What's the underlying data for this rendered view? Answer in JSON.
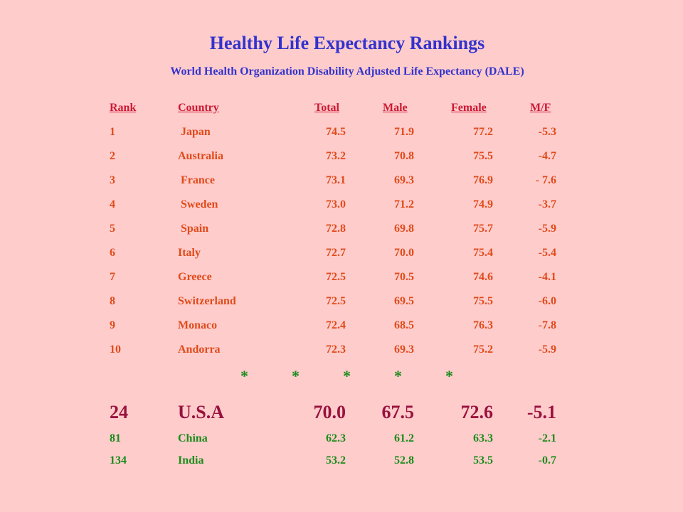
{
  "title": "Healthy Life Expectancy Rankings",
  "subtitle": "World Health Organization Disability Adjusted Life Expectancy (DALE)",
  "headers": {
    "rank": "Rank",
    "country": "Country",
    "total": "Total",
    "male": "Male",
    "female": "Female",
    "mf": "M/F"
  },
  "rows": [
    {
      "rank": "1",
      "country": " Japan",
      "total": "74.5",
      "male": "71.9",
      "female": "77.2",
      "mf": "-5.3"
    },
    {
      "rank": "2",
      "country": "Australia",
      "total": "73.2",
      "male": "70.8",
      "female": "75.5",
      "mf": "-4.7"
    },
    {
      "rank": "3",
      "country": " France",
      "total": "73.1",
      "male": "69.3",
      "female": "76.9",
      "mf": "- 7.6"
    },
    {
      "rank": "4",
      "country": " Sweden",
      "total": "73.0",
      "male": "71.2",
      "female": "74.9",
      "mf": "-3.7"
    },
    {
      "rank": "5",
      "country": " Spain",
      "total": "72.8",
      "male": "69.8",
      "female": "75.7",
      "mf": "-5.9"
    },
    {
      "rank": "6",
      "country": "Italy",
      "total": "72.7",
      "male": "70.0",
      "female": "75.4",
      "mf": "-5.4"
    },
    {
      "rank": "7",
      "country": "Greece",
      "total": "72.5",
      "male": "70.5",
      "female": "74.6",
      "mf": "-4.1"
    },
    {
      "rank": "8",
      "country": "Switzerland",
      "total": "72.5",
      "male": "69.5",
      "female": "75.5",
      "mf": "-6.0"
    },
    {
      "rank": "9",
      "country": "Monaco",
      "total": "72.4",
      "male": "68.5",
      "female": "76.3",
      "mf": "-7.8"
    },
    {
      "rank": "10",
      "country": "Andorra",
      "total": "72.3",
      "male": "69.3",
      "female": "75.2",
      "mf": "-5.9"
    }
  ],
  "separator": [
    "*",
    "*",
    "*",
    "*",
    "*"
  ],
  "highlight": {
    "rank": "24",
    "country": "U.S.A",
    "total": "70.0",
    "male": "67.5",
    "female": "72.6",
    "mf": "-5.1"
  },
  "others": [
    {
      "rank": "81",
      "country": "China",
      "total": "62.3",
      "male": "61.2",
      "female": "63.3",
      "mf": "-2.1"
    },
    {
      "rank": "134",
      "country": "India",
      "total": "53.2",
      "male": "52.8",
      "female": "53.5",
      "mf": "-0.7"
    }
  ],
  "colors": {
    "background": "#ffcccc",
    "title": "#3333cc",
    "header": "#cc1a33",
    "top_rows": "#e04b1a",
    "highlight": "#99123d",
    "others": "#1a8c1a"
  }
}
